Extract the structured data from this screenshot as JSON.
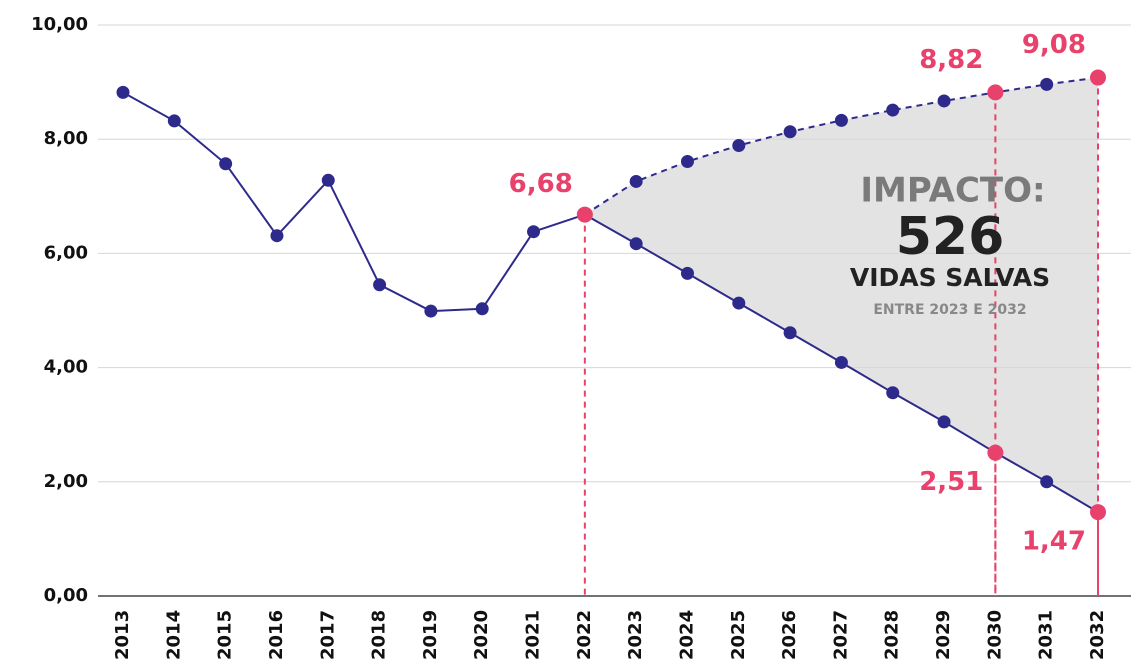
{
  "chart_data": {
    "type": "line",
    "categories": [
      "2013",
      "2014",
      "2015",
      "2016",
      "2017",
      "2018",
      "2019",
      "2020",
      "2021",
      "2022",
      "2023",
      "2024",
      "2025",
      "2026",
      "2027",
      "2028",
      "2029",
      "2030",
      "2031",
      "2032"
    ],
    "series": [
      {
        "color": "#2e2a8c",
        "dashed": false,
        "values": [
          8.82,
          8.32,
          7.57,
          6.31,
          7.28,
          5.45,
          4.99,
          5.03,
          6.38,
          6.68,
          null,
          null,
          null,
          null,
          null,
          null,
          null,
          null,
          null,
          null
        ],
        "value_labels": [
          null,
          null,
          null,
          null,
          null,
          null,
          null,
          null,
          null,
          "6,68",
          null,
          null,
          null,
          null,
          null,
          null,
          null,
          null,
          null,
          null
        ]
      },
      {
        "color": "#2e2a8c",
        "dashed": false,
        "values": [
          null,
          null,
          null,
          null,
          null,
          null,
          null,
          null,
          null,
          6.68,
          6.17,
          5.65,
          5.13,
          4.61,
          4.09,
          3.56,
          3.05,
          2.51,
          2.0,
          1.47
        ],
        "value_labels": [
          null,
          null,
          null,
          null,
          null,
          null,
          null,
          null,
          null,
          null,
          null,
          null,
          null,
          null,
          null,
          null,
          null,
          "2,51",
          null,
          "1,47"
        ]
      },
      {
        "color": "#2e2a8c",
        "dashed": true,
        "values": [
          null,
          null,
          null,
          null,
          null,
          null,
          null,
          null,
          null,
          6.68,
          7.26,
          7.61,
          7.89,
          8.13,
          8.33,
          8.51,
          8.67,
          8.82,
          8.96,
          9.08
        ],
        "value_labels": [
          null,
          null,
          null,
          null,
          null,
          null,
          null,
          null,
          null,
          null,
          null,
          null,
          null,
          null,
          null,
          null,
          null,
          "8,82",
          null,
          "9,08"
        ]
      }
    ],
    "highlight_color": "#e8416b",
    "area_color": "#e3e3e3",
    "ylim": [
      0,
      10
    ],
    "yticks": [
      {
        "value": 0,
        "label": "0,00"
      },
      {
        "value": 2,
        "label": "2,00"
      },
      {
        "value": 4,
        "label": "4,00"
      },
      {
        "value": 6,
        "label": "6,00"
      },
      {
        "value": 8,
        "label": "8,00"
      },
      {
        "value": 10,
        "label": "10,00"
      }
    ],
    "grid": true,
    "annotation": {
      "heading": "IMPACTO:",
      "number": "526",
      "text": "VIDAS SALVAS",
      "note": "ENTRE 2023 E 2032"
    }
  }
}
